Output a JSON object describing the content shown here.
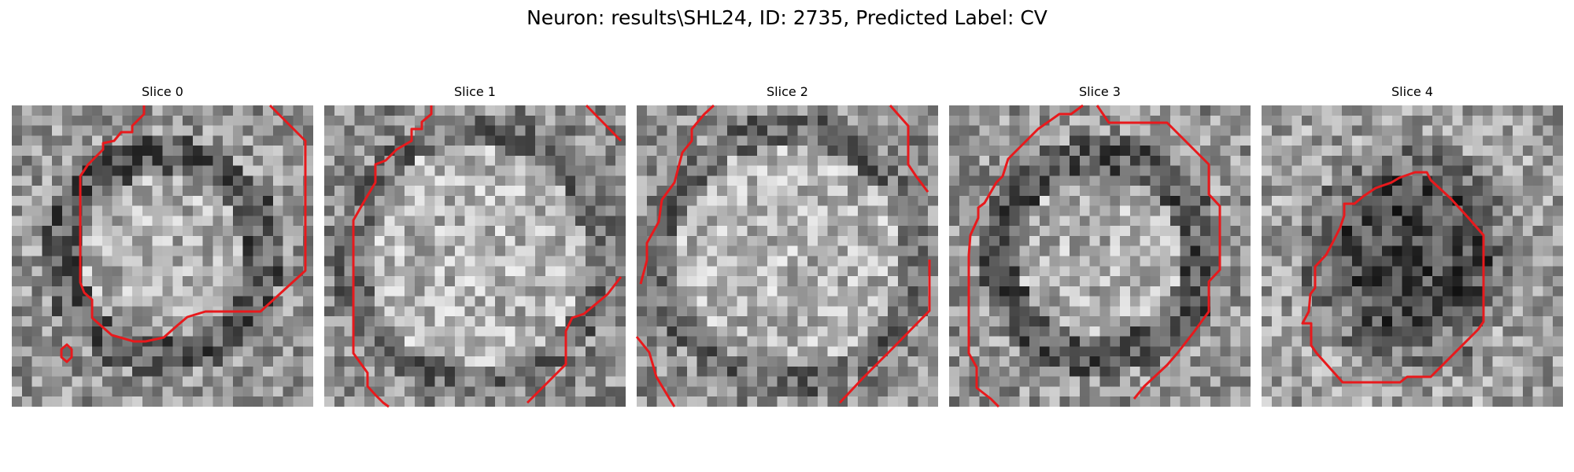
{
  "figure": {
    "title": "Neuron: results\\SHL24, ID: 2735, Predicted Label: CV"
  },
  "panels": [
    {
      "title": "Slice 0",
      "contours": [
        "M168,0 L168,11 L153,26 L153,34 L139,34 L130,45 L116,48 L116,56 L97,75 L87,90 L87,225 L92,238 L102,247 L102,270 L127,292 L155,300 L170,300 L193,295 L210,280 L223,269 L246,262 L316,262 L373,210 L373,45 L328,0",
        "M63,320 L63,310 L70,304 L76,310 L76,320 L70,326 Z"
      ]
    },
    {
      "title": "Slice 1",
      "contours": [
        "M136,0 L136,11 L124,21 L124,30 L111,30 L111,45 L92,56 L78,70 L65,75 L65,98 L53,118 L37,146 L37,315 L55,340 L55,357 L65,368 L75,378 L82,383",
        "M333,0 L377,45",
        "M258,378 L278,358 L307,329 L307,287 L315,270 L330,265 L360,240 L377,218"
      ]
    },
    {
      "title": "Slice 2",
      "contours": [
        "M98,0 L86,11 L70,30 L70,45 L58,60 L48,98 L32,120 L28,148 L13,175 L13,197 L5,227",
        "M322,0 L345,26 L345,75 L355,90 L370,110",
        "M0,294 L16,314 L25,345 L43,375 L48,383",
        "M258,378 L288,346 L325,309 L372,261 L372,196"
      ]
    },
    {
      "title": "Slice 3",
      "contours": [
        "M170,0 L155,11 L140,11 L113,30 L75,68 L68,90 L60,98 L45,124 L37,130 L37,143 L27,165 L25,190 L25,315 L35,333 L35,359 L53,373 L63,383",
        "M188,0 L203,22 L277,22 L300,45 L330,75 L330,113 L344,128 L344,209 L330,224 L330,262 L311,288 L290,315 L277,330 L248,357 L235,373"
      ]
    },
    {
      "title": "Slice 4",
      "contours": [
        "M105,125 L118,125 L130,115 L145,105 L165,98 L175,92 L195,85 L210,85 L215,95 L240,118 L262,142 L282,165 L282,275 L275,285 L215,345 L185,345 L176,352 L155,352 L103,352 L70,315 L63,305 L63,277 L52,277 L60,262 L62,240 L68,232 L68,205 L82,190 L90,175 L100,155 L105,140 Z"
      ]
    }
  ]
}
